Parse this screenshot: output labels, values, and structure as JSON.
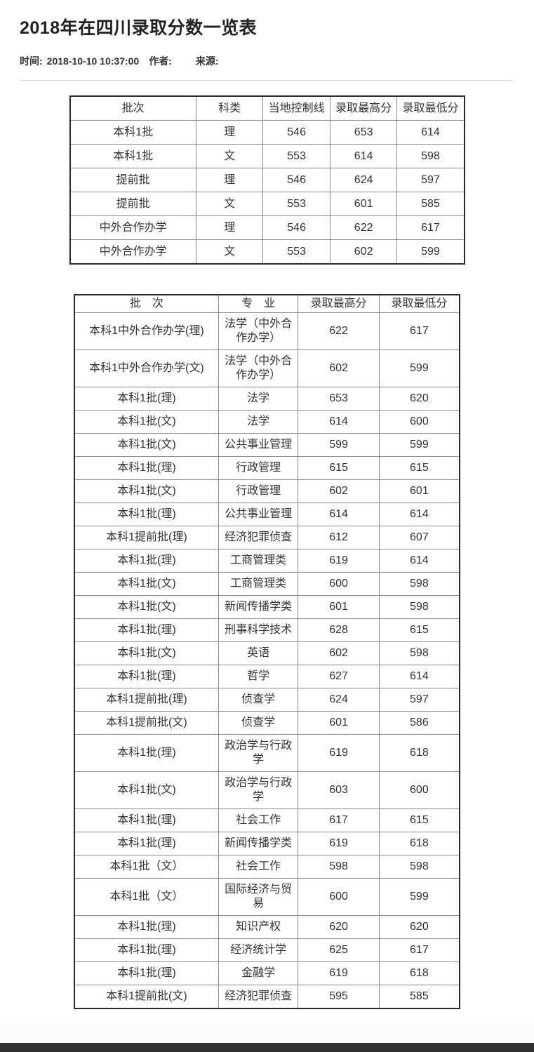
{
  "page": {
    "title": "2018年在四川录取分数一览表",
    "meta": {
      "time_label": "时间:",
      "time_value": "2018-10-10 10:37:00",
      "author_label": "作者:",
      "source_label": "来源:"
    }
  },
  "summary_table": {
    "headers": [
      "批次",
      "科类",
      "当地控制线",
      "录取最高分",
      "录取最低分"
    ],
    "rows": [
      [
        "本科1批",
        "理",
        "546",
        "653",
        "614"
      ],
      [
        "本科1批",
        "文",
        "553",
        "614",
        "598"
      ],
      [
        "提前批",
        "理",
        "546",
        "624",
        "597"
      ],
      [
        "提前批",
        "文",
        "553",
        "601",
        "585"
      ],
      [
        "中外合作办学",
        "理",
        "546",
        "622",
        "617"
      ],
      [
        "中外合作办学",
        "文",
        "553",
        "602",
        "599"
      ]
    ]
  },
  "majors_table": {
    "headers": [
      "批　次",
      "专　业",
      "录取最高分",
      "录取最低分"
    ],
    "rows": [
      [
        "本科1中外合作办学(理)",
        "法学（中外合作办学）",
        "622",
        "617"
      ],
      [
        "本科1中外合作办学(文)",
        "法学（中外合作办学）",
        "602",
        "599"
      ],
      [
        "本科1批(理)",
        "法学",
        "653",
        "620"
      ],
      [
        "本科1批(文)",
        "法学",
        "614",
        "600"
      ],
      [
        "本科1批(文)",
        "公共事业管理",
        "599",
        "599"
      ],
      [
        "本科1批(理)",
        "行政管理",
        "615",
        "615"
      ],
      [
        "本科1批(文)",
        "行政管理",
        "602",
        "601"
      ],
      [
        "本科1批(理)",
        "公共事业管理",
        "614",
        "614"
      ],
      [
        "本科1提前批(理)",
        "经济犯罪侦查",
        "612",
        "607"
      ],
      [
        "本科1批(理)",
        "工商管理类",
        "619",
        "614"
      ],
      [
        "本科1批(文)",
        "工商管理类",
        "600",
        "598"
      ],
      [
        "本科1批(文)",
        "新闻传播学类",
        "601",
        "598"
      ],
      [
        "本科1批(理)",
        "刑事科学技术",
        "628",
        "615"
      ],
      [
        "本科1批(文)",
        "英语",
        "602",
        "598"
      ],
      [
        "本科1批(理)",
        "哲学",
        "627",
        "614"
      ],
      [
        "本科1提前批(理)",
        "侦查学",
        "624",
        "597"
      ],
      [
        "本科1提前批(文)",
        "侦查学",
        "601",
        "586"
      ],
      [
        "本科1批(理)",
        "政治学与行政学",
        "619",
        "618"
      ],
      [
        "本科1批(文)",
        "政治学与行政学",
        "603",
        "600"
      ],
      [
        "本科1批(理)",
        "社会工作",
        "617",
        "615"
      ],
      [
        "本科1批(理)",
        "新闻传播学类",
        "619",
        "618"
      ],
      [
        "本科1批（文）",
        "社会工作",
        "598",
        "598"
      ],
      [
        "本科1批（文）",
        "国际经济与贸易",
        "600",
        "599"
      ],
      [
        "本科1批(理)",
        "知识产权",
        "620",
        "620"
      ],
      [
        "本科1批(理)",
        "经济统计学",
        "625",
        "617"
      ],
      [
        "本科1批(理)",
        "金融学",
        "619",
        "618"
      ],
      [
        "本科1提前批(文)",
        "经济犯罪侦查",
        "595",
        "585"
      ]
    ]
  },
  "colors": {
    "text": "#333333",
    "title_text": "#222222",
    "divider": "#dddddd",
    "table_border_outer": "#2b2b2b",
    "table_border_inner": "#8c8c8c",
    "page_background": "#fbfbfb",
    "card_background": "#ffffff",
    "footer_bar": "#323231"
  }
}
